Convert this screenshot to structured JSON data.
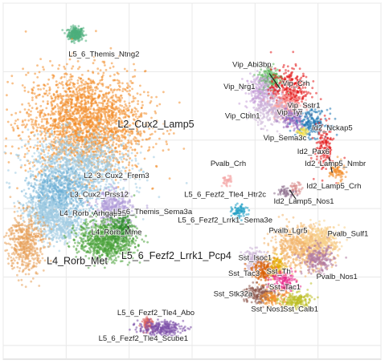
{
  "chart_data": {
    "type": "scatter",
    "title": "",
    "xlabel": "",
    "ylabel": "",
    "grid": true,
    "legend": "none",
    "clusters": [
      {
        "name": "L5_6_Themis_Ntng2",
        "color": "#4daf7c",
        "x": 0.3,
        "y": 9.1,
        "sx": 0.12,
        "sy": 0.1,
        "n": 260
      },
      {
        "name": "L2_Cux2_Lamp5",
        "color": "#f28e2b",
        "x": 0.6,
        "y": 6.5,
        "sx": 0.95,
        "sy": 0.75,
        "n": 2200
      },
      {
        "name": "L2_3_Cux2_Frem3",
        "color": "#9ecae1",
        "x": 0.4,
        "y": 5.2,
        "sx": 0.8,
        "sy": 0.5,
        "n": 1100
      },
      {
        "name": "L3_Cux2_Prss12",
        "color": "#6baed6",
        "x": -0.2,
        "y": 4.4,
        "sx": 0.5,
        "sy": 0.35,
        "n": 600
      },
      {
        "name": "L4_Rorb_Arhgap15",
        "color": "#9ecae1",
        "x": -0.6,
        "y": 3.9,
        "sx": 0.35,
        "sy": 0.3,
        "n": 450
      },
      {
        "name": "L5_6_Themis_Sema3a",
        "color": "#b19cd9",
        "x": 1.5,
        "y": 4.0,
        "sx": 0.3,
        "sy": 0.25,
        "n": 380
      },
      {
        "name": "L4_Rorb_Mme",
        "color": "#a6cee3",
        "x": -0.1,
        "y": 3.5,
        "sx": 0.35,
        "sy": 0.25,
        "n": 350
      },
      {
        "name": "L4_Rorb_Met",
        "color": "#e8a15a",
        "x": -1.3,
        "y": 3.0,
        "sx": 0.3,
        "sy": 0.45,
        "n": 500
      },
      {
        "name": "L5_6_Fezf2_Lrrk1_Pcp4",
        "color": "#4aa23a",
        "x": 1.3,
        "y": 3.1,
        "sx": 0.45,
        "sy": 0.3,
        "n": 900
      },
      {
        "name": "L5_6_Fezf2_Lrrk1_Sema3e",
        "color": "#2d8a2d",
        "x": 1.8,
        "y": 3.4,
        "sx": 0.15,
        "sy": 0.2,
        "n": 150
      },
      {
        "name": "Vip_Abi3bp",
        "color": "#5cb85c",
        "x": 6.5,
        "y": 7.8,
        "sx": 0.2,
        "sy": 0.2,
        "n": 200
      },
      {
        "name": "Vip_Nrg1",
        "color": "#c7a0d8",
        "x": 6.2,
        "y": 7.4,
        "sx": 0.25,
        "sy": 0.25,
        "n": 250
      },
      {
        "name": "Vip_Crh",
        "color": "#e41a1c",
        "x": 7.1,
        "y": 7.5,
        "sx": 0.3,
        "sy": 0.3,
        "n": 320
      },
      {
        "name": "Vip_Sstr1",
        "color": "#fb9a99",
        "x": 7.0,
        "y": 7.0,
        "sx": 0.25,
        "sy": 0.2,
        "n": 220
      },
      {
        "name": "Vip_Cbln1",
        "color": "#cab2d6",
        "x": 6.6,
        "y": 6.8,
        "sx": 0.3,
        "sy": 0.2,
        "n": 200
      },
      {
        "name": "Vip_Tyr",
        "color": "#9467bd",
        "x": 7.2,
        "y": 6.6,
        "sx": 0.2,
        "sy": 0.15,
        "n": 140
      },
      {
        "name": "Id2_Nckap5",
        "color": "#1f78b4",
        "x": 7.8,
        "y": 6.5,
        "sx": 0.25,
        "sy": 0.2,
        "n": 200
      },
      {
        "name": "Vip_Sema3c",
        "color": "#f4e04d",
        "x": 7.5,
        "y": 6.2,
        "sx": 0.08,
        "sy": 0.08,
        "n": 50
      },
      {
        "name": "Id2_Pax6",
        "color": "#e41a1c",
        "x": 8.2,
        "y": 5.8,
        "sx": 0.15,
        "sy": 0.35,
        "n": 150
      },
      {
        "name": "Id2_Lamp5_Nmbr",
        "color": "#f28e2b",
        "x": 8.6,
        "y": 5.1,
        "sx": 0.12,
        "sy": 0.15,
        "n": 90
      },
      {
        "name": "Pvalb_Crh",
        "color": "#f4a6a6",
        "x": 5.1,
        "y": 4.8,
        "sx": 0.08,
        "sy": 0.08,
        "n": 40
      },
      {
        "name": "L5_6_Fezf2_Tle4_Htr2c",
        "color": "#1f9fc4",
        "x": 5.5,
        "y": 3.9,
        "sx": 0.12,
        "sy": 0.1,
        "n": 80
      },
      {
        "name": "Id2_Lamp5_Crh",
        "color": "#d98c8c",
        "x": 7.3,
        "y": 4.6,
        "sx": 0.1,
        "sy": 0.08,
        "n": 40
      },
      {
        "name": "Id2_Lamp5_Nos1",
        "color": "#8c6d8c",
        "x": 7.0,
        "y": 4.5,
        "sx": 0.15,
        "sy": 0.08,
        "n": 50
      },
      {
        "name": "Pvalb_Lgr5",
        "color": "#f2b56b",
        "x": 7.5,
        "y": 2.9,
        "sx": 0.5,
        "sy": 0.3,
        "n": 700
      },
      {
        "name": "Pvalb_Sulf1",
        "color": "#f7d28c",
        "x": 8.1,
        "y": 3.1,
        "sx": 0.3,
        "sy": 0.2,
        "n": 280
      },
      {
        "name": "Pvalb_Nos1",
        "color": "#b07aa1",
        "x": 8.0,
        "y": 2.5,
        "sx": 0.25,
        "sy": 0.2,
        "n": 220
      },
      {
        "name": "Sst_Isoc1",
        "color": "#cab2d6",
        "x": 6.0,
        "y": 2.5,
        "sx": 0.2,
        "sy": 0.15,
        "n": 140
      },
      {
        "name": "Sst_Tac3",
        "color": "#d95f02",
        "x": 6.3,
        "y": 2.2,
        "sx": 0.2,
        "sy": 0.15,
        "n": 170
      },
      {
        "name": "Sst_Th",
        "color": "#e6ab02",
        "x": 6.7,
        "y": 2.3,
        "sx": 0.15,
        "sy": 0.15,
        "n": 100
      },
      {
        "name": "Sst_Tac1",
        "color": "#e7298a",
        "x": 6.9,
        "y": 1.9,
        "sx": 0.2,
        "sy": 0.15,
        "n": 140
      },
      {
        "name": "Sst_Stk32a",
        "color": "#8c564b",
        "x": 6.1,
        "y": 1.5,
        "sx": 0.25,
        "sy": 0.15,
        "n": 180
      },
      {
        "name": "Sst_Nos1",
        "color": "#f28e2b",
        "x": 6.6,
        "y": 1.4,
        "sx": 0.2,
        "sy": 0.12,
        "n": 120
      },
      {
        "name": "Sst_Calb1",
        "color": "#bcbd22",
        "x": 7.3,
        "y": 1.3,
        "sx": 0.25,
        "sy": 0.12,
        "n": 170
      },
      {
        "name": "L5_6_Fezf2_Tle4_Abo",
        "color": "#d95f5f",
        "x": 2.6,
        "y": 0.65,
        "sx": 0.1,
        "sy": 0.1,
        "n": 80
      },
      {
        "name": "L5_6_Fezf2_Tle4_Scube1",
        "color": "#7b4fa8",
        "x": 3.0,
        "y": 0.5,
        "sx": 0.35,
        "sy": 0.1,
        "n": 250
      }
    ],
    "labels": [
      {
        "text": "L5_6_Themis_Ntng2",
        "x": 1.2,
        "y": 8.5,
        "big": false
      },
      {
        "text": "Vip_Abi3bp",
        "x": 5.9,
        "y": 8.2,
        "big": false
      },
      {
        "text": "Vip_Nrg1",
        "x": 5.5,
        "y": 7.55,
        "big": false
      },
      {
        "text": "Vip_Crh",
        "x": 7.3,
        "y": 7.65,
        "big": false
      },
      {
        "text": "Vip_Sstr1",
        "x": 7.55,
        "y": 7.0,
        "big": false
      },
      {
        "text": "Vip_Cbln1",
        "x": 5.6,
        "y": 6.7,
        "big": false
      },
      {
        "text": "Vip_Tyr",
        "x": 7.1,
        "y": 6.8,
        "big": false
      },
      {
        "text": "Id2_Nckap5",
        "x": 8.45,
        "y": 6.35,
        "big": false
      },
      {
        "text": "Vip_Sema3c",
        "x": 6.95,
        "y": 6.05,
        "big": false
      },
      {
        "text": "L2_Cux2_Lamp5",
        "x": 2.85,
        "y": 6.45,
        "big": true
      },
      {
        "text": "Id2_Pax6",
        "x": 7.85,
        "y": 5.65,
        "big": false
      },
      {
        "text": "Pvalb_Crh",
        "x": 5.15,
        "y": 5.3,
        "big": false
      },
      {
        "text": "Id2_Lamp5_Nmbr",
        "x": 8.55,
        "y": 5.3,
        "big": false
      },
      {
        "text": "L2_3_Cux2_Frem3",
        "x": 1.6,
        "y": 4.95,
        "big": false
      },
      {
        "text": "Id2_Lamp5_Crh",
        "x": 8.5,
        "y": 4.65,
        "big": false
      },
      {
        "text": "L5_6_Fezf2_Tle4_Htr2c",
        "x": 5.05,
        "y": 4.4,
        "big": false
      },
      {
        "text": "L3_Cux2_Prss12",
        "x": 1.05,
        "y": 4.4,
        "big": false
      },
      {
        "text": "Id2_Lamp5_Nos1",
        "x": 7.55,
        "y": 4.2,
        "big": false
      },
      {
        "text": "L4_Rorb_Arhgap15",
        "x": 0.85,
        "y": 3.85,
        "big": false
      },
      {
        "text": "L5_6_Themis_Sema3a",
        "x": 2.75,
        "y": 3.9,
        "big": false
      },
      {
        "text": "L5_6_Fezf2_Lrrk1_Sema3e",
        "x": 5.05,
        "y": 3.65,
        "big": false
      },
      {
        "text": "L4_Rorb_Mme",
        "x": 1.6,
        "y": 3.3,
        "big": false
      },
      {
        "text": "Pvalb_Lgr5",
        "x": 7.05,
        "y": 3.35,
        "big": false
      },
      {
        "text": "Pvalb_Sulf1",
        "x": 8.95,
        "y": 3.25,
        "big": false
      },
      {
        "text": "L5_6_Fezf2_Lrrk1_Pcp4",
        "x": 3.5,
        "y": 2.6,
        "big": true
      },
      {
        "text": "L4_Rorb_Met",
        "x": 0.35,
        "y": 2.45,
        "big": true
      },
      {
        "text": "Sst_Isoc1",
        "x": 6.0,
        "y": 2.55,
        "big": false
      },
      {
        "text": "Sst_Th",
        "x": 6.75,
        "y": 2.15,
        "big": false
      },
      {
        "text": "Sst_Tac3",
        "x": 5.65,
        "y": 2.1,
        "big": false
      },
      {
        "text": "Pvalb_Nos1",
        "x": 8.6,
        "y": 2.0,
        "big": false
      },
      {
        "text": "Sst_Tac1",
        "x": 6.95,
        "y": 1.7,
        "big": false
      },
      {
        "text": "Sst_Stk32a",
        "x": 5.3,
        "y": 1.5,
        "big": false
      },
      {
        "text": "Sst_Nos1",
        "x": 6.4,
        "y": 1.05,
        "big": false
      },
      {
        "text": "Sst_Calb1",
        "x": 7.45,
        "y": 1.05,
        "big": false
      },
      {
        "text": "L5_6_Fezf2_Tle4_Abo",
        "x": 2.85,
        "y": 0.95,
        "big": false
      },
      {
        "text": "L5_6_Fezf2_Tle4_Scube1",
        "x": 2.45,
        "y": 0.2,
        "big": false
      }
    ],
    "leaders": [
      {
        "from": [
          6.45,
          7.95
        ],
        "to": [
          6.8,
          7.5
        ]
      },
      {
        "from": [
          1.95,
          3.5
        ],
        "to": [
          2.1,
          3.2
        ]
      },
      {
        "from": [
          7.35,
          4.2
        ],
        "to": [
          7.1,
          4.55
        ]
      },
      {
        "from": [
          8.35,
          5.5
        ],
        "to": [
          8.45,
          5.05
        ]
      }
    ],
    "xlim": [
      -2,
      10
    ],
    "ylim": [
      -0.4,
      10
    ]
  }
}
